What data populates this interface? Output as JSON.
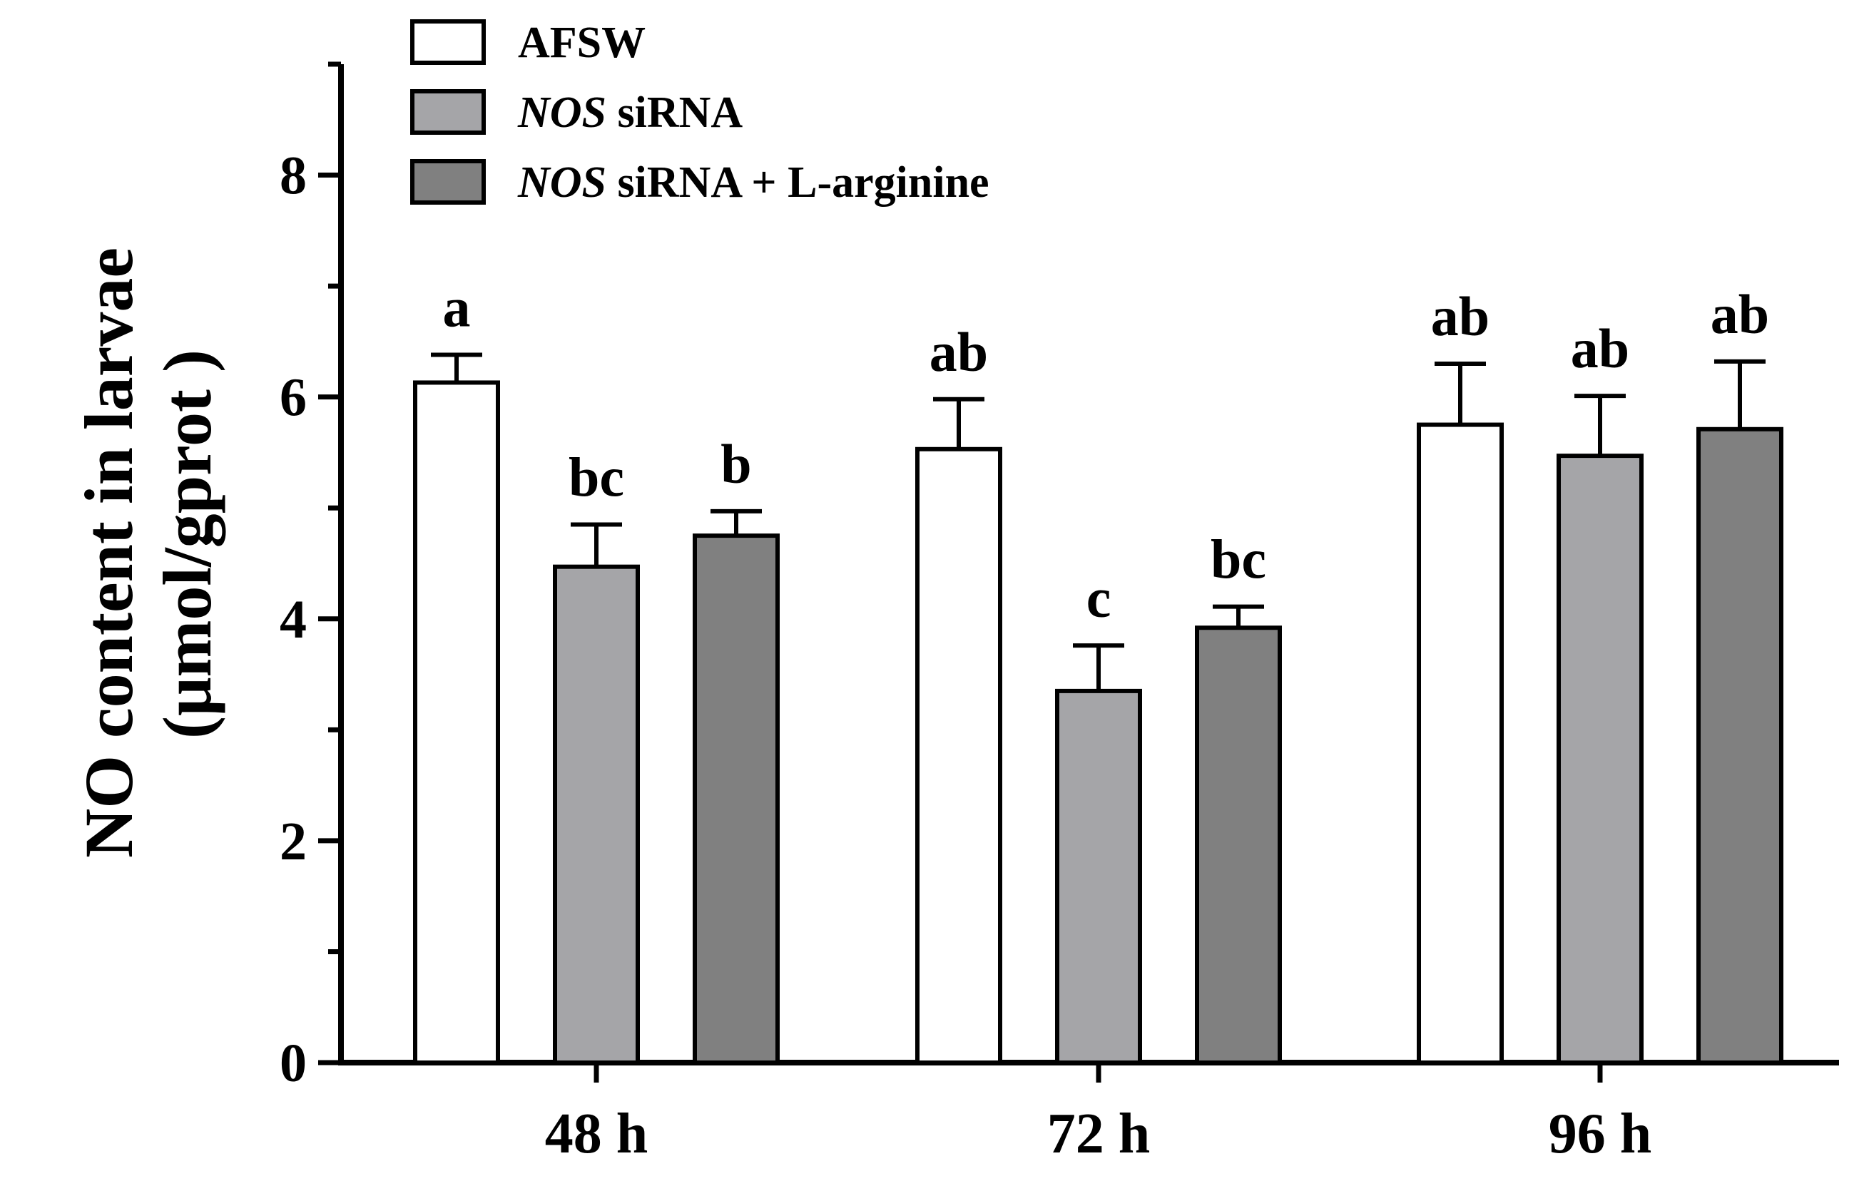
{
  "chart_data": {
    "type": "bar",
    "ylabel_line1": "NO content in larvae",
    "ylabel_line2": "(μmol/gprot )",
    "xlabel": "",
    "ylim": [
      0,
      9
    ],
    "yticks": [
      0,
      2,
      4,
      6,
      8
    ],
    "categories": [
      "48 h",
      "72 h",
      "96 h"
    ],
    "series": [
      {
        "name": "AFSW",
        "legend_italic": "",
        "legend_rest": "AFSW",
        "color": "#ffffff",
        "values": [
          6.13,
          5.53,
          5.75
        ],
        "errors": [
          0.25,
          0.45,
          0.55
        ],
        "letters": [
          "a",
          "ab",
          "ab"
        ]
      },
      {
        "name": "NOS siRNA",
        "legend_italic": "NOS",
        "legend_rest": " siRNA",
        "color": "#a5a5a8",
        "values": [
          4.47,
          3.35,
          5.47
        ],
        "errors": [
          0.38,
          0.41,
          0.54
        ],
        "letters": [
          "bc",
          "c",
          "ab"
        ]
      },
      {
        "name": "NOS siRNA + L-arginine",
        "legend_italic": "NOS",
        "legend_rest": " siRNA + L-arginine",
        "color": "#808080",
        "values": [
          4.75,
          3.92,
          5.71
        ],
        "errors": [
          0.22,
          0.19,
          0.61
        ],
        "letters": [
          "b",
          "bc",
          "ab"
        ]
      }
    ],
    "legend_position": "top-left",
    "grid": false
  }
}
